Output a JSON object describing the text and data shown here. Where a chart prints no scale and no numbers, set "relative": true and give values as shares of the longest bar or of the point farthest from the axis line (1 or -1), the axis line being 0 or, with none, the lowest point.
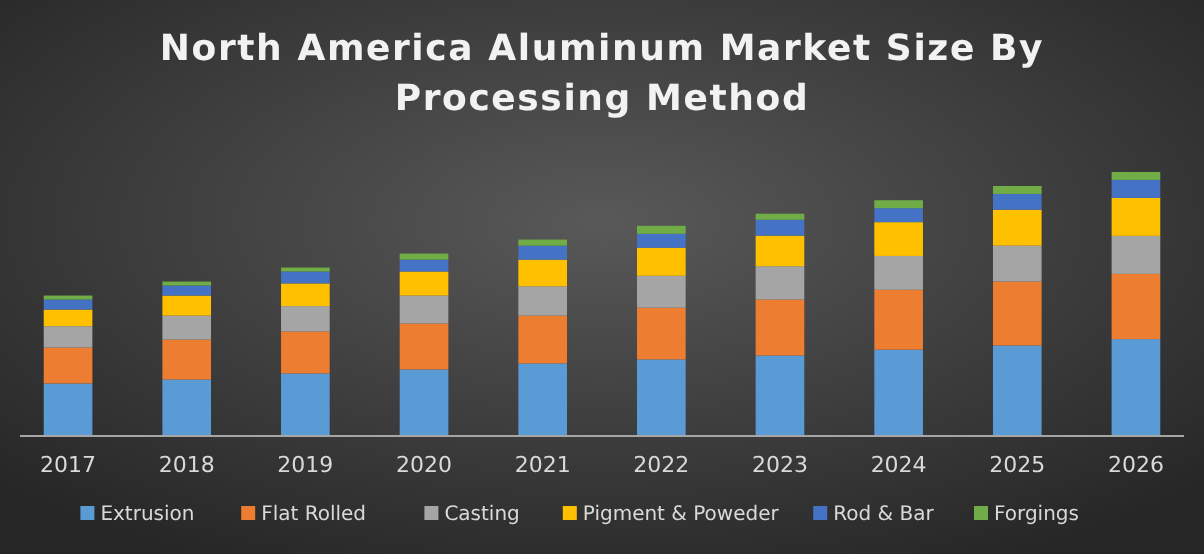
{
  "chart_data": {
    "type": "bar",
    "title": "North America Aluminum Market Size By Processing Method",
    "stacked": true,
    "relative": true,
    "legend": "bottom",
    "categories": [
      "2017",
      "2018",
      "2019",
      "2020",
      "2021",
      "2022",
      "2023",
      "2024",
      "2025",
      "2026"
    ],
    "series": [
      {
        "name": "Extrusion",
        "color": "#5b9bd5",
        "values": [
          0.199,
          0.214,
          0.237,
          0.252,
          0.275,
          0.29,
          0.305,
          0.327,
          0.343,
          0.367
        ]
      },
      {
        "name": "Flat Rolled",
        "color": "#ed7d31",
        "values": [
          0.136,
          0.151,
          0.159,
          0.174,
          0.181,
          0.196,
          0.212,
          0.227,
          0.242,
          0.247
        ]
      },
      {
        "name": "Casting",
        "color": "#a5a5a5",
        "values": [
          0.081,
          0.091,
          0.096,
          0.106,
          0.111,
          0.121,
          0.126,
          0.128,
          0.136,
          0.144
        ]
      },
      {
        "name": "Pigment & Poweder",
        "color": "#ffc000",
        "values": [
          0.063,
          0.076,
          0.086,
          0.091,
          0.101,
          0.106,
          0.116,
          0.128,
          0.136,
          0.144
        ]
      },
      {
        "name": "Rod & Bar",
        "color": "#4472c4",
        "values": [
          0.038,
          0.038,
          0.045,
          0.045,
          0.053,
          0.053,
          0.06,
          0.053,
          0.06,
          0.068
        ]
      },
      {
        "name": "Forgings",
        "color": "#70ad47",
        "values": [
          0.015,
          0.015,
          0.015,
          0.023,
          0.023,
          0.03,
          0.023,
          0.03,
          0.03,
          0.03
        ]
      }
    ]
  }
}
